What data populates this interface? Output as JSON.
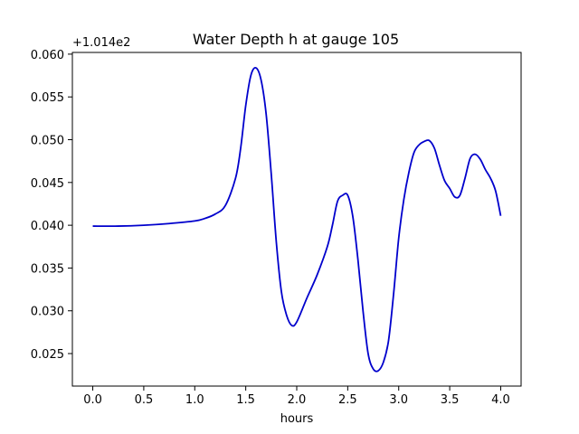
{
  "chart_data": {
    "type": "line",
    "title": "Water Depth h at gauge 105",
    "xlabel": "hours",
    "ylabel": "",
    "y_offset_label": "+1.014e2",
    "xlim": [
      -0.2,
      4.2
    ],
    "ylim": [
      0.0212,
      0.0602
    ],
    "xticks": [
      0.0,
      0.5,
      1.0,
      1.5,
      2.0,
      2.5,
      3.0,
      3.5,
      4.0
    ],
    "xtick_labels": [
      "0.0",
      "0.5",
      "1.0",
      "1.5",
      "2.0",
      "2.5",
      "3.0",
      "3.5",
      "4.0"
    ],
    "yticks": [
      0.025,
      0.03,
      0.035,
      0.04,
      0.045,
      0.05,
      0.055,
      0.06
    ],
    "ytick_labels": [
      "0.025",
      "0.030",
      "0.035",
      "0.040",
      "0.045",
      "0.050",
      "0.055",
      "0.060"
    ],
    "grid": false,
    "series": [
      {
        "color": "#0000cc",
        "x": [
          0.0,
          0.25,
          0.5,
          0.75,
          1.0,
          1.1,
          1.2,
          1.3,
          1.4,
          1.45,
          1.5,
          1.55,
          1.6,
          1.65,
          1.7,
          1.75,
          1.8,
          1.85,
          1.9,
          1.95,
          2.0,
          2.1,
          2.2,
          2.3,
          2.35,
          2.4,
          2.45,
          2.5,
          2.55,
          2.6,
          2.65,
          2.7,
          2.75,
          2.8,
          2.85,
          2.9,
          2.95,
          3.0,
          3.05,
          3.1,
          3.15,
          3.2,
          3.25,
          3.3,
          3.35,
          3.4,
          3.45,
          3.5,
          3.55,
          3.6,
          3.65,
          3.7,
          3.75,
          3.8,
          3.85,
          3.9,
          3.95,
          4.0
        ],
        "values": [
          0.0399,
          0.0399,
          0.04,
          0.0402,
          0.0405,
          0.0408,
          0.0413,
          0.0423,
          0.0455,
          0.049,
          0.054,
          0.0575,
          0.0584,
          0.057,
          0.053,
          0.046,
          0.038,
          0.0322,
          0.0295,
          0.0283,
          0.0287,
          0.0315,
          0.0342,
          0.0375,
          0.04,
          0.0428,
          0.0435,
          0.0435,
          0.041,
          0.036,
          0.03,
          0.025,
          0.0232,
          0.023,
          0.024,
          0.0265,
          0.032,
          0.0385,
          0.043,
          0.0462,
          0.0485,
          0.0494,
          0.0498,
          0.0499,
          0.049,
          0.047,
          0.0452,
          0.0443,
          0.0433,
          0.0435,
          0.0455,
          0.0478,
          0.0483,
          0.0477,
          0.0465,
          0.0455,
          0.044,
          0.0411
        ]
      }
    ]
  }
}
